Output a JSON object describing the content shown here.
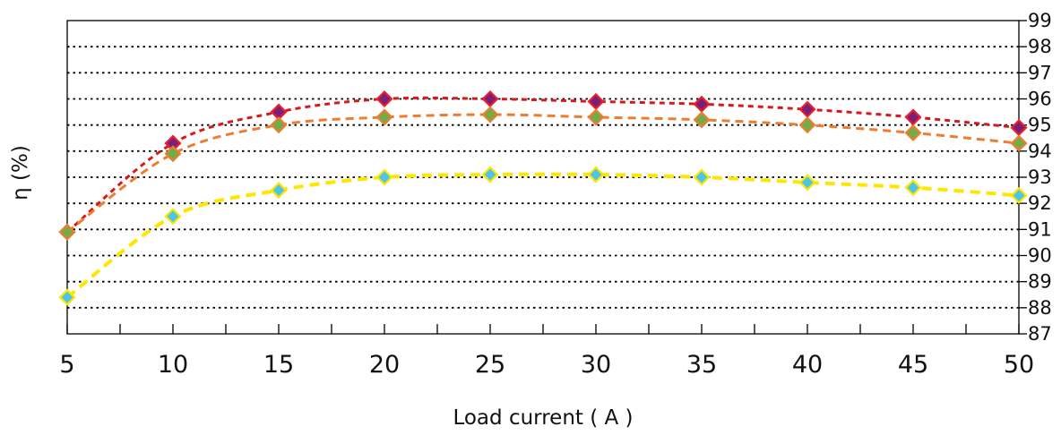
{
  "chart_data": {
    "type": "line",
    "title": "",
    "xlabel": "Load current ( A )",
    "ylabel": "η (%)",
    "xlim": [
      5,
      50
    ],
    "ylim": [
      87,
      99
    ],
    "x_ticks": [
      5,
      10,
      15,
      20,
      25,
      30,
      35,
      40,
      45,
      50
    ],
    "y_ticks": [
      87,
      88,
      89,
      90,
      91,
      92,
      93,
      94,
      95,
      96,
      97,
      98,
      99
    ],
    "y_axis_side": "right",
    "grid": "horizontal dotted",
    "legend": "none",
    "x": [
      5,
      10,
      15,
      20,
      25,
      30,
      35,
      40,
      45,
      50
    ],
    "series": [
      {
        "line_color": "#d7191c",
        "marker_fill": "#7b1e7a",
        "marker_edge": "#e8202a",
        "values": [
          90.9,
          94.3,
          95.5,
          96.0,
          96.0,
          95.9,
          95.8,
          95.6,
          95.3,
          94.9
        ]
      },
      {
        "line_color": "#ed7d31",
        "marker_fill": "#70ad47",
        "marker_edge": "#ed7d31",
        "values": [
          90.9,
          93.9,
          95.0,
          95.3,
          95.4,
          95.3,
          95.2,
          95.0,
          94.7,
          94.3
        ]
      },
      {
        "line_color": "#ffe600",
        "marker_fill": "#4bc6e8",
        "marker_edge": "#ffe600",
        "values": [
          88.4,
          91.5,
          92.5,
          93.0,
          93.1,
          93.1,
          93.0,
          92.8,
          92.6,
          92.3
        ]
      }
    ]
  }
}
